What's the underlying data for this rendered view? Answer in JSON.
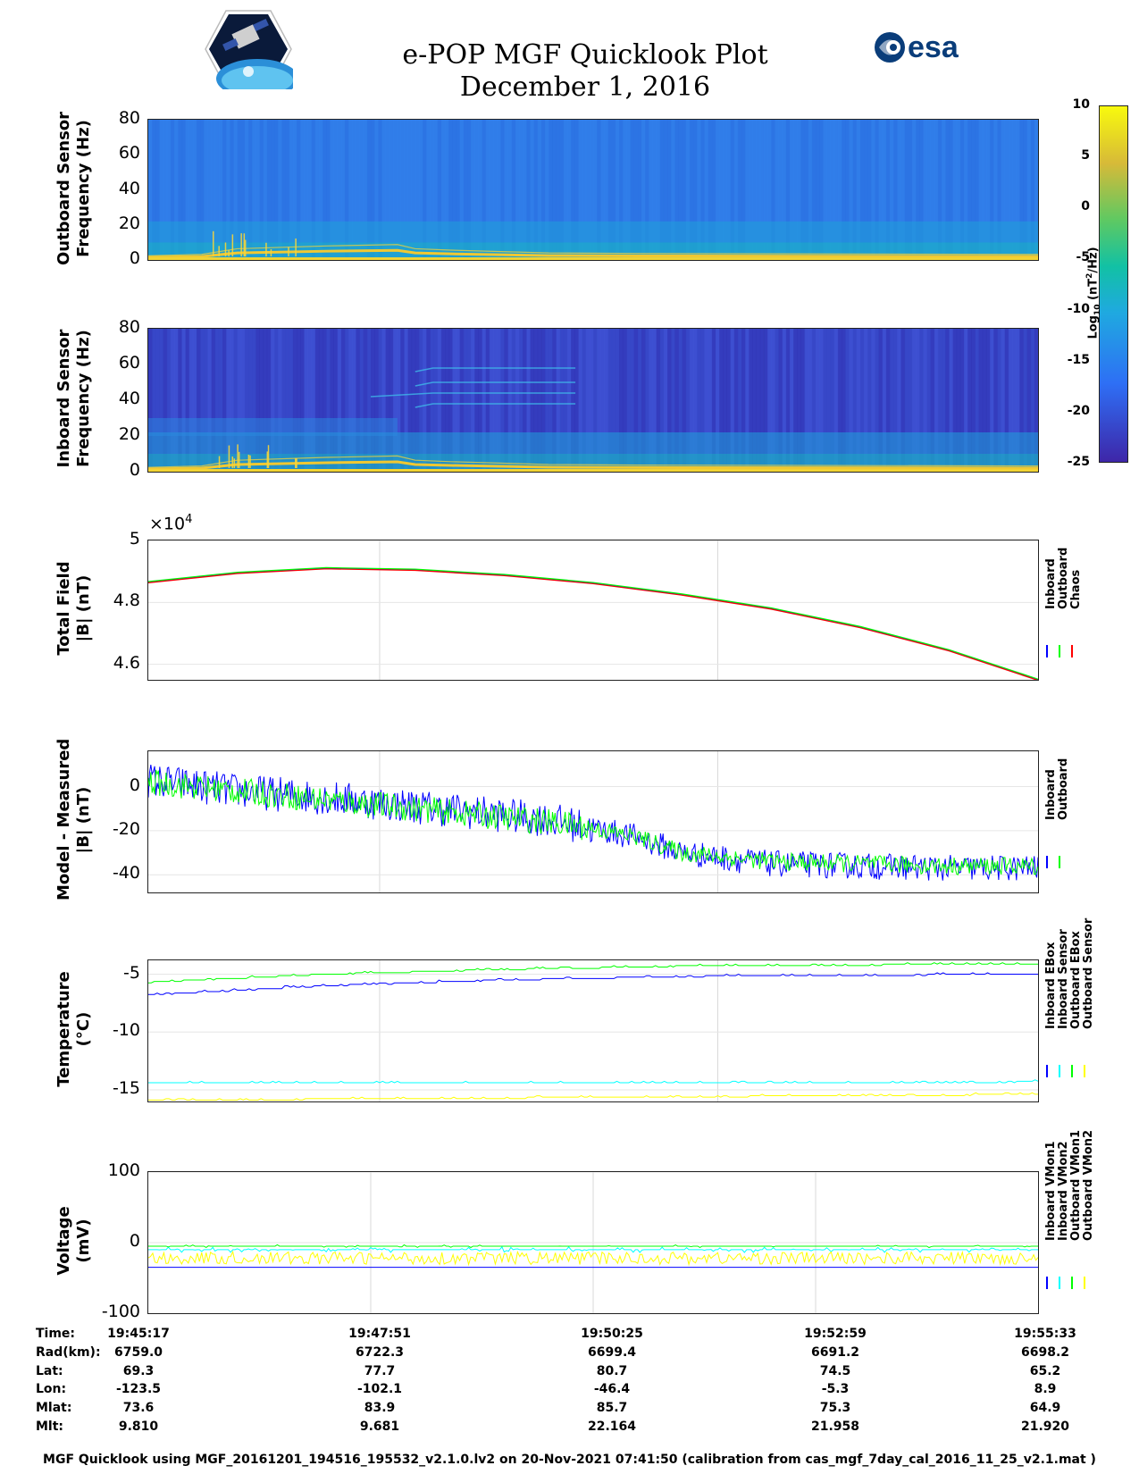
{
  "header": {
    "title_line1": "e-POP MGF Quicklook Plot",
    "title_line2": "December 1, 2016",
    "mission_logo": "satellite-mission-logo",
    "agency_logo_text": "esa"
  },
  "colorbar": {
    "label": "Log10 (nT²/Hz)",
    "label_main": "Log",
    "label_sub": "10",
    "label_rest": " (nT",
    "label_sup": "2",
    "label_end": "/Hz)",
    "ticks": [
      "10",
      "5",
      "0",
      "-5",
      "-10",
      "-15",
      "-20",
      "-25"
    ],
    "range": [
      -25,
      10
    ],
    "colors": [
      "#3e26a8",
      "#2e6ff5",
      "#1fa9e0",
      "#12c1a4",
      "#5ec962",
      "#d7ba38",
      "#f8fa0d"
    ]
  },
  "chart_data": [
    {
      "type": "heatmap",
      "id": "outboard-spectrogram",
      "ylabel_line1": "Outboard Sensor",
      "ylabel_line2": "Frequency (Hz)",
      "yticks": [
        "80",
        "60",
        "40",
        "20",
        "0"
      ],
      "ylim": [
        0,
        80
      ]
    },
    {
      "type": "heatmap",
      "id": "inboard-spectrogram",
      "ylabel_line1": "Inboard Sensor",
      "ylabel_line2": "Frequency (Hz)",
      "yticks": [
        "80",
        "60",
        "40",
        "20",
        "0"
      ],
      "ylim": [
        0,
        80
      ]
    },
    {
      "type": "line",
      "id": "total-field",
      "ylabel_line1": "Total Field",
      "ylabel_line2": "|B| (nT)",
      "multiplier_base": "×10",
      "multiplier_exp": "4",
      "yticks": [
        "5",
        "4.8",
        "4.6"
      ],
      "ylim": [
        4.55,
        5.0
      ],
      "legend": [
        "Inboard",
        "Outboard",
        "Chaos"
      ],
      "legend_colors": [
        "#0000ff",
        "#00ff00",
        "#ff0000"
      ],
      "x": [
        0,
        0.1,
        0.2,
        0.3,
        0.4,
        0.5,
        0.6,
        0.7,
        0.8,
        0.9,
        1.0
      ],
      "series": [
        {
          "name": "Chaos",
          "values": [
            4.865,
            4.895,
            4.91,
            4.905,
            4.888,
            4.862,
            4.825,
            4.78,
            4.72,
            4.645,
            4.55
          ]
        }
      ]
    },
    {
      "type": "line",
      "id": "model-minus-measured",
      "ylabel_line1": "Model - Measured",
      "ylabel_line2": "|B| (nT)",
      "yticks": [
        "0",
        "-20",
        "-40"
      ],
      "ylim": [
        -48,
        16
      ],
      "legend": [
        "Inboard",
        "Outboard"
      ],
      "legend_colors": [
        "#0000ff",
        "#00ff00"
      ],
      "x": [
        0,
        0.1,
        0.2,
        0.3,
        0.4,
        0.45,
        0.5,
        0.55,
        0.6,
        0.7,
        0.8,
        0.9,
        1.0
      ],
      "series": [
        {
          "name": "Inboard",
          "values": [
            3,
            -2,
            -5,
            -9,
            -13,
            -15,
            -19,
            -23,
            -30,
            -35,
            -36,
            -37,
            -37
          ]
        },
        {
          "name": "Outboard",
          "values": [
            2,
            -2,
            -6,
            -10,
            -14,
            -16,
            -19,
            -23,
            -30,
            -34,
            -35,
            -36,
            -36
          ]
        }
      ]
    },
    {
      "type": "line",
      "id": "temperature",
      "ylabel_line1": "Temperature",
      "ylabel_line2": "(°C)",
      "yticks": [
        "-5",
        "-10",
        "-15"
      ],
      "ylim": [
        -16,
        -3.8
      ],
      "legend": [
        "Inboard EBox",
        "Inboard Sensor",
        "Outboard EBox",
        "Outboard Sensor"
      ],
      "legend_colors": [
        "#0000ff",
        "#00ffff",
        "#00ff00",
        "#ffff00"
      ],
      "x": [
        0,
        0.2,
        0.4,
        0.6,
        0.8,
        1.0
      ],
      "series": [
        {
          "name": "Outboard EBox",
          "values": [
            -5.7,
            -5.0,
            -4.6,
            -4.3,
            -4.2,
            -4.1
          ]
        },
        {
          "name": "Inboard EBox",
          "values": [
            -6.8,
            -6.0,
            -5.5,
            -5.2,
            -5.1,
            -5.0
          ]
        },
        {
          "name": "Inboard Sensor",
          "values": [
            -14.4,
            -14.4,
            -14.4,
            -14.4,
            -14.4,
            -14.3
          ]
        },
        {
          "name": "Outboard Sensor",
          "values": [
            -15.9,
            -15.8,
            -15.7,
            -15.6,
            -15.5,
            -15.4
          ]
        }
      ]
    },
    {
      "type": "line",
      "id": "voltage",
      "ylabel_line1": "Voltage",
      "ylabel_line2": "(mV)",
      "yticks": [
        "100",
        "0",
        "-100"
      ],
      "ylim": [
        -100,
        100
      ],
      "legend": [
        "Inboard VMon1",
        "Inboard VMon2",
        "Outboard VMon1",
        "Outboard VMon2"
      ],
      "legend_colors": [
        "#0000ff",
        "#00ffff",
        "#00ff00",
        "#ffff00"
      ],
      "series": [
        {
          "name": "Inboard VMon1",
          "values": [
            -35
          ]
        },
        {
          "name": "Inboard VMon2",
          "values": [
            -10
          ]
        },
        {
          "name": "Outboard VMon1",
          "values": [
            -5
          ]
        },
        {
          "name": "Outboard VMon2",
          "values": [
            -22
          ]
        }
      ]
    }
  ],
  "ephemeris": {
    "row_labels": [
      "Time:",
      "Rad(km):",
      "Lat:",
      "Lon:",
      "Mlat:",
      "Mlt:"
    ],
    "columns": [
      [
        "19:45:17",
        "6759.0",
        "69.3",
        "-123.5",
        "73.6",
        "9.810"
      ],
      [
        "19:47:51",
        "6722.3",
        "77.7",
        "-102.1",
        "83.9",
        "9.681"
      ],
      [
        "19:50:25",
        "6699.4",
        "80.7",
        "-46.4",
        "85.7",
        "22.164"
      ],
      [
        "19:52:59",
        "6691.2",
        "74.5",
        "-5.3",
        "75.3",
        "21.958"
      ],
      [
        "19:55:33",
        "6698.2",
        "65.2",
        "8.9",
        "64.9",
        "21.920"
      ]
    ]
  },
  "footer": {
    "text": "MGF Quicklook using MGF_20161201_194516_195532_v2.1.0.lv2 on 20-Nov-2021 07:41:50 (calibration from cas_mgf_7day_cal_2016_11_25_v2.1.mat )"
  }
}
